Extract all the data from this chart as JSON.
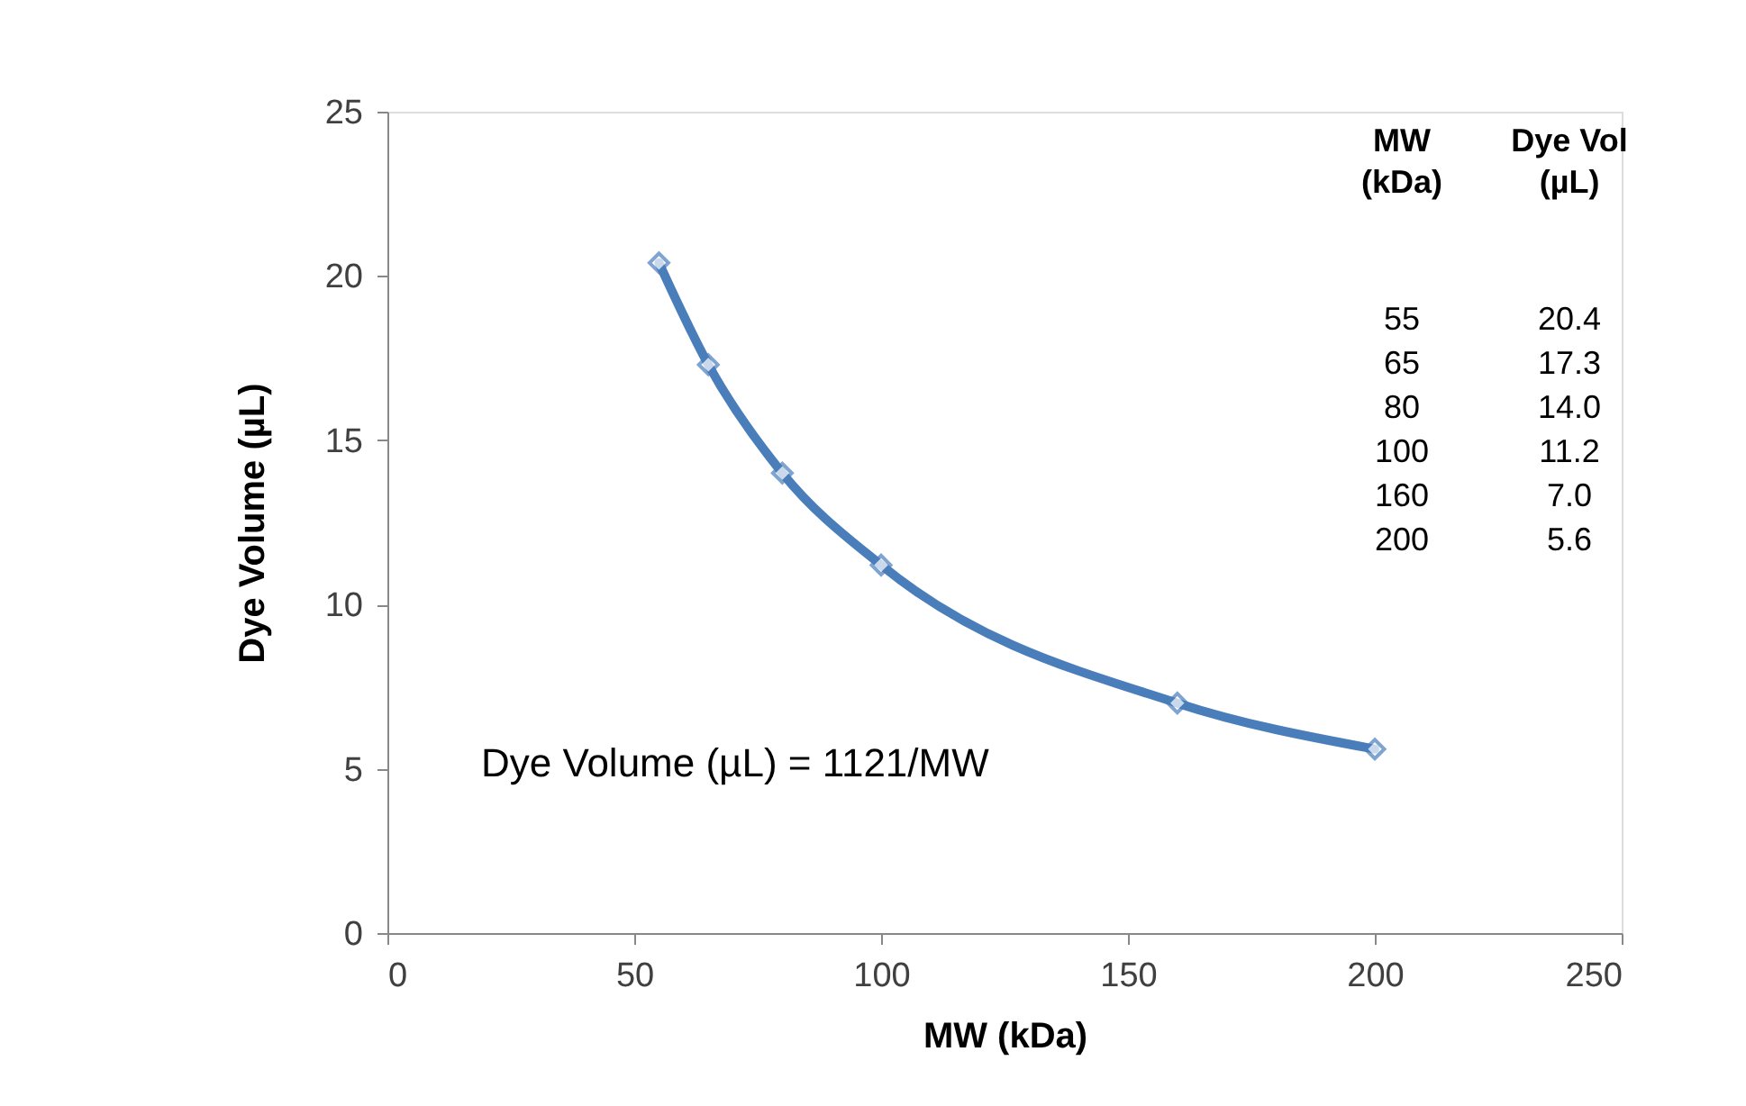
{
  "chart_data": {
    "type": "line",
    "xlabel": "MW (kDa)",
    "ylabel": "Dye Volume (µL)",
    "x": [
      55,
      65,
      80,
      100,
      160,
      200
    ],
    "series": [
      {
        "color": "#4a7ebb",
        "values": [
          20.4,
          17.3,
          14.0,
          11.2,
          7.0,
          5.6
        ]
      }
    ],
    "xlim": [
      0,
      250
    ],
    "xticks": [
      0,
      50,
      100,
      150,
      200,
      250
    ],
    "ylim": [
      0,
      25
    ],
    "yticks": [
      0,
      5,
      10,
      15,
      20,
      25
    ],
    "grid": false,
    "marker": "diamond",
    "line_style": "solid",
    "annotations": [
      "MW\n(kDa)",
      "Dye Vol\n(µL)",
      "55",
      "20.4",
      "65",
      "17.3",
      "80",
      "14.0",
      "100",
      "11.2",
      "160",
      "7.0",
      "200",
      "5.6",
      "Dye Volume (µL) = 1121/MW"
    ]
  }
}
